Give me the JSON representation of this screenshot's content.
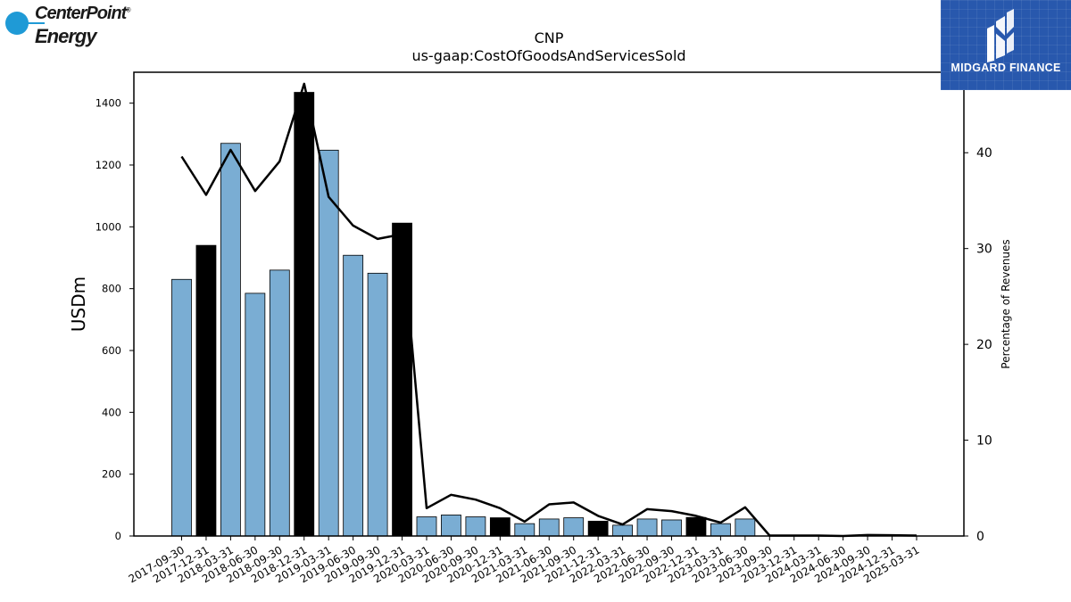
{
  "logos": {
    "left_line1": "CenterPoint",
    "left_line1_mark": "®",
    "left_line2": "Energy",
    "right_text": "MIDGARD FINANCE",
    "left_color": "#1f9ad6",
    "right_bg": "#2858ad"
  },
  "chart_data": {
    "type": "bar",
    "title": "CNP",
    "subtitle": "us-gaap:CostOfGoodsAndServicesSold",
    "ylabel": "USDm",
    "y2label": "Percentage of Revenues",
    "ylim": [
      0,
      1500
    ],
    "y2lim": [
      0,
      48.4
    ],
    "yticks": [
      0,
      200,
      400,
      600,
      800,
      1000,
      1200,
      1400
    ],
    "y2ticks": [
      0,
      10,
      20,
      30,
      40
    ],
    "grid": false,
    "categories": [
      "2017-09-30",
      "2017-12-31",
      "2018-03-31",
      "2018-06-30",
      "2018-09-30",
      "2018-12-31",
      "2019-03-31",
      "2019-06-30",
      "2019-09-30",
      "2019-12-31",
      "2020-03-31",
      "2020-06-30",
      "2020-09-30",
      "2020-12-31",
      "2021-03-31",
      "2021-06-30",
      "2021-09-30",
      "2021-12-31",
      "2022-03-31",
      "2022-06-30",
      "2022-09-30",
      "2022-12-31",
      "2023-03-31",
      "2023-06-30",
      "2023-09-30",
      "2023-12-31",
      "2024-03-31",
      "2024-06-30",
      "2024-09-30",
      "2024-12-31",
      "2025-03-31"
    ],
    "series": [
      {
        "kind": "bar",
        "values": [
          830,
          940,
          1270,
          785,
          860,
          1435,
          1248,
          908,
          850,
          1012,
          62,
          68,
          62,
          59,
          40,
          55,
          59,
          48,
          35,
          55,
          52,
          60,
          40,
          55,
          null,
          null,
          null,
          null,
          null,
          null,
          null
        ],
        "colors": [
          "#7aadd3",
          "#000000",
          "#7aadd3",
          "#7aadd3",
          "#7aadd3",
          "#000000",
          "#7aadd3",
          "#7aadd3",
          "#7aadd3",
          "#000000",
          "#7aadd3",
          "#7aadd3",
          "#7aadd3",
          "#000000",
          "#7aadd3",
          "#7aadd3",
          "#7aadd3",
          "#000000",
          "#7aadd3",
          "#7aadd3",
          "#7aadd3",
          "#000000",
          "#7aadd3",
          "#7aadd3",
          "#7aadd3",
          "#000000",
          "#7aadd3",
          "#7aadd3",
          "#7aadd3",
          "#000000",
          "#7aadd3"
        ]
      },
      {
        "kind": "line",
        "axis": "right",
        "color": "#000000",
        "values": [
          39.6,
          35.6,
          40.3,
          36.0,
          39.1,
          47.2,
          35.4,
          32.4,
          31.0,
          31.5,
          2.9,
          4.3,
          3.8,
          2.9,
          1.5,
          3.3,
          3.5,
          2.1,
          1.2,
          2.8,
          2.6,
          2.1,
          1.4,
          3.0,
          0.05,
          0.05,
          0.05,
          0.0,
          0.1,
          0.08,
          0.05
        ]
      }
    ]
  }
}
